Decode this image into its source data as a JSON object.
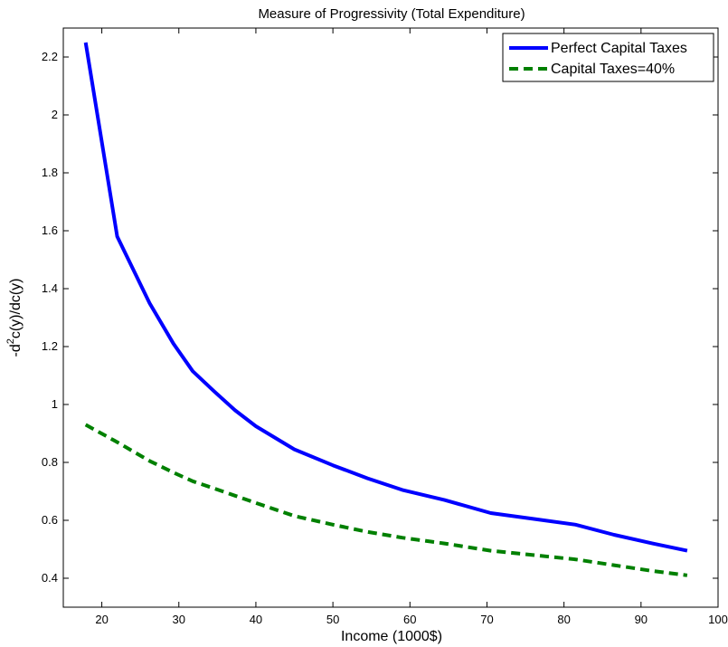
{
  "chart_data": {
    "type": "line",
    "title": "Measure of Progressivity (Total Expenditure)",
    "xlabel": "Income (1000$)",
    "ylabel": "-d²c(y)/dc(y)",
    "ylabel_parts": {
      "prefix": "-d",
      "sup": "2",
      "suffix": "c(y)/dc(y)"
    },
    "xlim": [
      15,
      100
    ],
    "ylim": [
      0.3,
      2.3
    ],
    "xticks": [
      20,
      30,
      40,
      50,
      60,
      70,
      80,
      90,
      100
    ],
    "yticks": [
      0.4,
      0.6,
      0.8,
      1,
      1.2,
      1.4,
      1.6,
      1.8,
      2,
      2.2
    ],
    "ytick_labels": [
      "0.4",
      "0.6",
      "0.8",
      "1",
      "1.2",
      "1.4",
      "1.6",
      "1.8",
      "2",
      "2.2"
    ],
    "grid": false,
    "legend_position": "top-right",
    "series": [
      {
        "name": "Perfect Capital Taxes",
        "color": "#0000ff",
        "style": "solid",
        "x": [
          17.9,
          22.0,
          26.2,
          29.3,
          31.8,
          34.6,
          37.3,
          40.0,
          45.0,
          50.0,
          54.5,
          59.0,
          64.5,
          70.5,
          76.0,
          81.5,
          86.5,
          91.5,
          96.0
        ],
        "y": [
          2.25,
          1.58,
          1.35,
          1.21,
          1.115,
          1.045,
          0.98,
          0.925,
          0.845,
          0.79,
          0.745,
          0.705,
          0.67,
          0.625,
          0.605,
          0.585,
          0.55,
          0.52,
          0.495
        ]
      },
      {
        "name": "Capital Taxes=40%",
        "color": "#008000",
        "style": "dashed",
        "x": [
          17.9,
          22.0,
          26.2,
          29.3,
          31.8,
          34.6,
          37.3,
          40.0,
          45.0,
          50.0,
          54.5,
          59.0,
          64.5,
          70.5,
          76.0,
          81.5,
          86.5,
          91.5,
          96.0
        ],
        "y": [
          0.93,
          0.87,
          0.805,
          0.765,
          0.735,
          0.71,
          0.685,
          0.66,
          0.615,
          0.585,
          0.56,
          0.54,
          0.52,
          0.495,
          0.48,
          0.465,
          0.445,
          0.425,
          0.41
        ]
      }
    ]
  }
}
